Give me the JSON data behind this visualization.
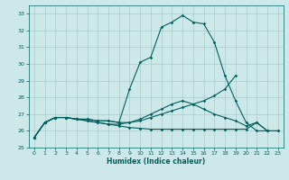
{
  "xlabel": "Humidex (Indice chaleur)",
  "background_color": "#cce8e8",
  "grid_color": "#aacccc",
  "line_color": "#006060",
  "xlim": [
    -0.5,
    23.5
  ],
  "ylim": [
    25,
    33.5
  ],
  "yticks": [
    25,
    26,
    27,
    28,
    29,
    30,
    31,
    32,
    33
  ],
  "xticks": [
    0,
    1,
    2,
    3,
    4,
    5,
    6,
    7,
    8,
    9,
    10,
    11,
    12,
    13,
    14,
    15,
    16,
    17,
    18,
    19,
    20,
    21,
    22,
    23
  ],
  "line1_y": [
    25.6,
    26.5,
    26.8,
    26.8,
    26.7,
    26.7,
    26.6,
    26.6,
    26.5,
    28.5,
    30.1,
    30.4,
    32.2,
    32.5,
    32.9,
    32.5,
    32.4,
    31.3,
    29.3,
    27.8,
    26.5,
    26.0,
    26.0,
    null
  ],
  "line2_y": [
    25.6,
    26.5,
    26.8,
    26.8,
    26.7,
    26.7,
    26.6,
    26.6,
    26.5,
    26.5,
    26.6,
    26.8,
    27.0,
    27.2,
    27.4,
    27.6,
    27.8,
    28.1,
    28.5,
    29.3,
    null,
    null,
    null,
    null
  ],
  "line3_y": [
    25.6,
    26.5,
    26.8,
    26.8,
    26.7,
    26.6,
    26.5,
    26.4,
    26.3,
    26.2,
    26.15,
    26.1,
    26.1,
    26.1,
    26.1,
    26.1,
    26.1,
    26.1,
    26.1,
    26.1,
    26.1,
    26.5,
    26.0,
    26.0
  ],
  "line4_y": [
    25.6,
    26.5,
    26.8,
    26.8,
    26.7,
    26.6,
    26.5,
    26.4,
    26.4,
    26.5,
    26.7,
    27.0,
    27.3,
    27.6,
    27.8,
    27.6,
    27.3,
    27.0,
    26.8,
    26.6,
    26.3,
    26.5,
    26.0,
    26.0
  ]
}
